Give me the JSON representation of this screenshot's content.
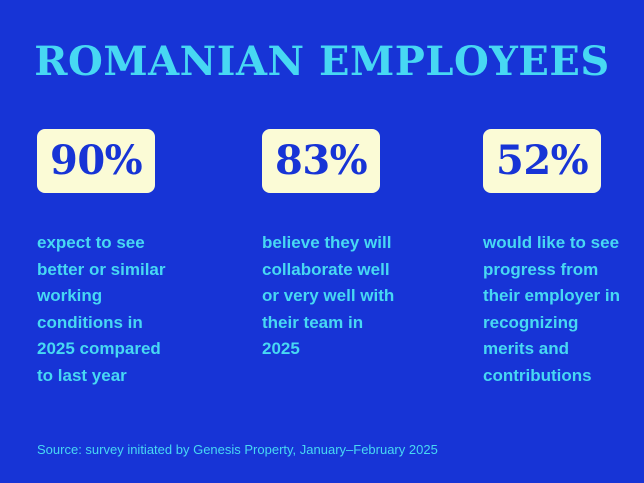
{
  "title": "ROMANIAN EMPLOYEES",
  "stats": [
    {
      "value": "90%",
      "lines": [
        "expect to see",
        "better or similar",
        "working",
        "conditions in",
        "2025 compared",
        "to last year"
      ]
    },
    {
      "value": "83%",
      "lines": [
        "believe they will",
        "collaborate well",
        "or very well with",
        "their team in",
        "2025"
      ]
    },
    {
      "value": "52%",
      "lines": [
        "would like to see",
        "progress from",
        "their employer in",
        "recognizing",
        "merits and",
        "contributions"
      ]
    }
  ],
  "source": "Source: survey initiated by Genesis Property, January–February 2025",
  "colors": {
    "background": "#1734d6",
    "accent": "#47d8f3",
    "badge": "#fbfbd6"
  },
  "chart_data": {
    "type": "table",
    "title": "ROMANIAN EMPLOYEES",
    "categories": [
      "expect to see better or similar working conditions in 2025 compared to last year",
      "believe they will collaborate well or very well with their team in 2025",
      "would like to see progress from their employer in recognizing merits and contributions"
    ],
    "values": [
      90,
      83,
      52
    ],
    "unit": "%"
  }
}
